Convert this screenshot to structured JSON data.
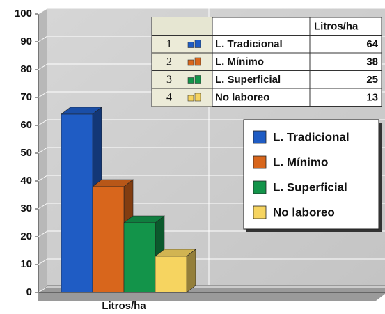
{
  "chart_data": {
    "type": "bar3d",
    "categories": [
      "Litros/ha"
    ],
    "series": [
      {
        "name": "L. Tradicional",
        "color": "#1f5cc4",
        "values": [
          64
        ]
      },
      {
        "name": "L. Mínimo",
        "color": "#d8661c",
        "values": [
          38
        ]
      },
      {
        "name": "L. Superficial",
        "color": "#13944a",
        "values": [
          25
        ]
      },
      {
        "name": "No laboreo",
        "color": "#f6d460",
        "values": [
          13
        ]
      }
    ],
    "ylim": [
      0,
      100
    ],
    "yticks": [
      0,
      10,
      20,
      30,
      40,
      50,
      60,
      70,
      80,
      90,
      100
    ],
    "grid": true,
    "legend": "right",
    "table": {
      "header": "Litros/ha",
      "row_numbers": [
        1,
        2,
        3,
        4
      ]
    }
  }
}
